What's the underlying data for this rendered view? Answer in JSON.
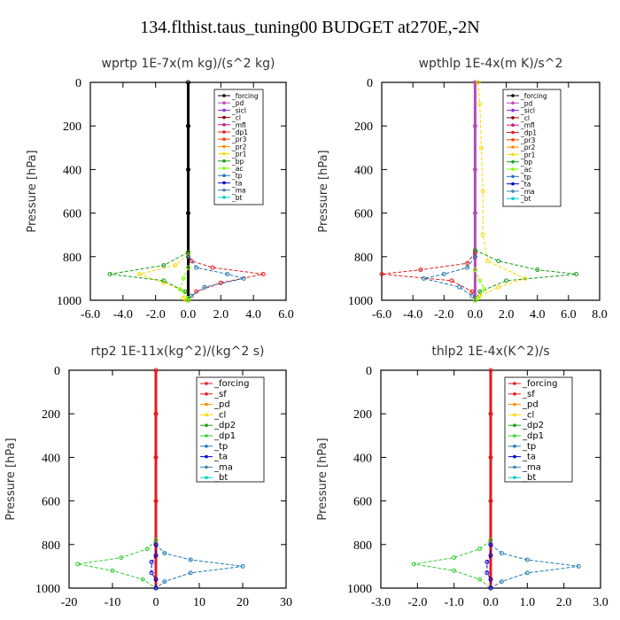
{
  "title": "134.flthist.taus_tuning00  BUDGET at270E,-2N",
  "chart_data": [
    {
      "type": "line",
      "title": "wprtp   1E-7x(m kg)/(s^2 kg)",
      "ylabel": "Pressure  [hPa]",
      "xlim": [
        -6,
        6
      ],
      "ylim": [
        1000,
        0
      ],
      "xticks": [
        "-6.0",
        "-4.0",
        "-2.0",
        "0.0",
        "2.0",
        "4.0",
        "6.0"
      ],
      "yticks": [
        "0",
        "200",
        "400",
        "600",
        "800",
        "1000"
      ],
      "legend": [
        "_forcing",
        "_pd",
        "_sicl",
        "_cl",
        "_mfl",
        "_dp1",
        "_pr3",
        "_pr2",
        "_pr1",
        "_bp",
        "_ac",
        "_tp",
        "_ta",
        "_ma",
        "_bt"
      ],
      "series": [
        {
          "name": "_forcing",
          "color": "#000000",
          "x": [
            0,
            0,
            0,
            0,
            0,
            0
          ],
          "y": [
            0,
            200,
            400,
            600,
            800,
            1000
          ]
        },
        {
          "name": "_dp1",
          "color": "#e41a1c",
          "x": [
            0,
            0.2,
            1.5,
            4.6,
            2.0,
            0.5,
            0
          ],
          "y": [
            780,
            820,
            850,
            880,
            920,
            960,
            1000
          ]
        },
        {
          "name": "_pr1",
          "color": "#ffd700",
          "x": [
            0,
            -0.8,
            -3.0,
            -1.5,
            -0.2,
            -0.3,
            -0.1
          ],
          "y": [
            790,
            840,
            880,
            920,
            960,
            990,
            1000
          ]
        },
        {
          "name": "_bp",
          "color": "#1a9e1a",
          "x": [
            0,
            -1.5,
            -4.8,
            -1.5,
            -0.2,
            0
          ],
          "y": [
            780,
            840,
            880,
            910,
            960,
            1000
          ]
        },
        {
          "name": "_tp",
          "color": "#1f78b4",
          "x": [
            0,
            0.5,
            2.4,
            3.4,
            1.0,
            0.2,
            0
          ],
          "y": [
            800,
            850,
            880,
            900,
            940,
            980,
            1000
          ]
        },
        {
          "name": "_ac",
          "color": "#7fff00",
          "x": [
            0,
            -0.3,
            -0.5,
            0,
            0
          ],
          "y": [
            850,
            900,
            950,
            990,
            1000
          ]
        }
      ]
    },
    {
      "type": "line",
      "title": "wpthlp   1E-4x(m K)/s^2",
      "ylabel": "Pressure  [hPa]",
      "xlim": [
        -6,
        8
      ],
      "ylim": [
        1000,
        0
      ],
      "xticks": [
        "-6.0",
        "-4.0",
        "-2.0",
        "0.0",
        "2.0",
        "4.0",
        "6.0",
        "8.0"
      ],
      "yticks": [
        "0",
        "200",
        "400",
        "600",
        "800",
        "1000"
      ],
      "legend": [
        "_forcing",
        "_pd",
        "_sicl",
        "_cl",
        "_mfl",
        "_dp1",
        "_pr3",
        "_pr2",
        "_pr1",
        "_bp",
        "_ac",
        "_tp",
        "_ta",
        "_ma",
        "_bt"
      ],
      "series": [
        {
          "name": "_pd",
          "color": "#b84ab8",
          "x": [
            0,
            0,
            0,
            0,
            0,
            0
          ],
          "y": [
            0,
            200,
            400,
            600,
            800,
            1000
          ]
        },
        {
          "name": "_pr1",
          "color": "#ffd700",
          "x": [
            0.2,
            0.3,
            0.4,
            0.5,
            0.5,
            0.8,
            3.2,
            1.5,
            0.3,
            0
          ],
          "y": [
            0,
            100,
            300,
            500,
            700,
            820,
            900,
            940,
            980,
            1000
          ]
        },
        {
          "name": "_dp1",
          "color": "#e41a1c",
          "x": [
            0,
            -0.5,
            -3.5,
            -6.0,
            -1.5,
            -0.2,
            0
          ],
          "y": [
            780,
            830,
            860,
            880,
            910,
            960,
            1000
          ]
        },
        {
          "name": "_bp",
          "color": "#1a9e1a",
          "x": [
            0,
            1.5,
            4.0,
            6.5,
            2.0,
            0.3,
            0
          ],
          "y": [
            770,
            820,
            860,
            880,
            910,
            960,
            1000
          ]
        },
        {
          "name": "_tp",
          "color": "#1f78b4",
          "x": [
            0,
            -0.5,
            -2.0,
            -3.3,
            -1.0,
            -0.2,
            0
          ],
          "y": [
            800,
            850,
            880,
            900,
            940,
            980,
            1000
          ]
        },
        {
          "name": "_ac",
          "color": "#7fff00",
          "x": [
            0,
            0.3,
            0.6,
            0.2,
            0
          ],
          "y": [
            860,
            910,
            950,
            990,
            1000
          ]
        }
      ]
    },
    {
      "type": "line",
      "title": "rtp2   1E-11x(kg^2)/(kg^2 s)",
      "ylabel": "Pressure  [hPa]",
      "xlim": [
        -20,
        30
      ],
      "ylim": [
        1000,
        0
      ],
      "xticks": [
        "-20",
        "-10",
        "0",
        "10",
        "20",
        "30"
      ],
      "yticks": [
        "0",
        "200",
        "400",
        "600",
        "800",
        "1000"
      ],
      "legend": [
        "_forcing",
        "_sf",
        "_pd",
        "_cl",
        "_dp2",
        "_dp1",
        "_tp",
        "_ta",
        "_ma",
        "_bt"
      ],
      "series": [
        {
          "name": "_forcing",
          "color": "#e41a1c",
          "x": [
            0,
            0,
            0,
            0,
            0,
            0
          ],
          "y": [
            0,
            200,
            400,
            600,
            800,
            1000
          ]
        },
        {
          "name": "_dp1",
          "color": "#32cd32",
          "x": [
            0,
            -2,
            -8,
            -18,
            -10,
            -3,
            0
          ],
          "y": [
            780,
            820,
            860,
            890,
            920,
            960,
            1000
          ]
        },
        {
          "name": "_tp",
          "color": "#1f78b4",
          "x": [
            0,
            2,
            8,
            20,
            8,
            2,
            0
          ],
          "y": [
            800,
            840,
            870,
            900,
            930,
            970,
            1000
          ]
        },
        {
          "name": "_ta",
          "color": "#0000cd",
          "x": [
            0,
            0,
            -1,
            -1,
            0,
            0
          ],
          "y": [
            800,
            850,
            880,
            930,
            960,
            1000
          ]
        }
      ]
    },
    {
      "type": "line",
      "title": "thlp2   1E-4x(K^2)/s",
      "ylabel": "Pressure  [hPa]",
      "xlim": [
        -3,
        3
      ],
      "ylim": [
        1000,
        0
      ],
      "xticks": [
        "-3.0",
        "-2.0",
        "-1.0",
        "0.0",
        "1.0",
        "2.0",
        "3.0"
      ],
      "yticks": [
        "0",
        "200",
        "400",
        "600",
        "800",
        "1000"
      ],
      "legend": [
        "_forcing",
        "_sf",
        "_pd",
        "_cl",
        "_dp2",
        "_dp1",
        "_tp",
        "_ta",
        "_ma",
        "_bt"
      ],
      "series": [
        {
          "name": "_forcing",
          "color": "#e41a1c",
          "x": [
            0,
            0,
            0,
            0,
            0,
            0
          ],
          "y": [
            0,
            200,
            400,
            600,
            800,
            1000
          ]
        },
        {
          "name": "_dp1",
          "color": "#32cd32",
          "x": [
            0,
            -0.3,
            -1.0,
            -2.1,
            -1.0,
            -0.3,
            0
          ],
          "y": [
            780,
            820,
            860,
            890,
            920,
            960,
            1000
          ]
        },
        {
          "name": "_tp",
          "color": "#1f78b4",
          "x": [
            0,
            0.3,
            1.0,
            2.4,
            1.0,
            0.3,
            0
          ],
          "y": [
            800,
            840,
            870,
            900,
            930,
            970,
            1000
          ]
        },
        {
          "name": "_ta",
          "color": "#0000cd",
          "x": [
            0,
            0,
            -0.1,
            -0.1,
            0,
            0
          ],
          "y": [
            800,
            850,
            880,
            930,
            960,
            1000
          ]
        }
      ]
    }
  ]
}
